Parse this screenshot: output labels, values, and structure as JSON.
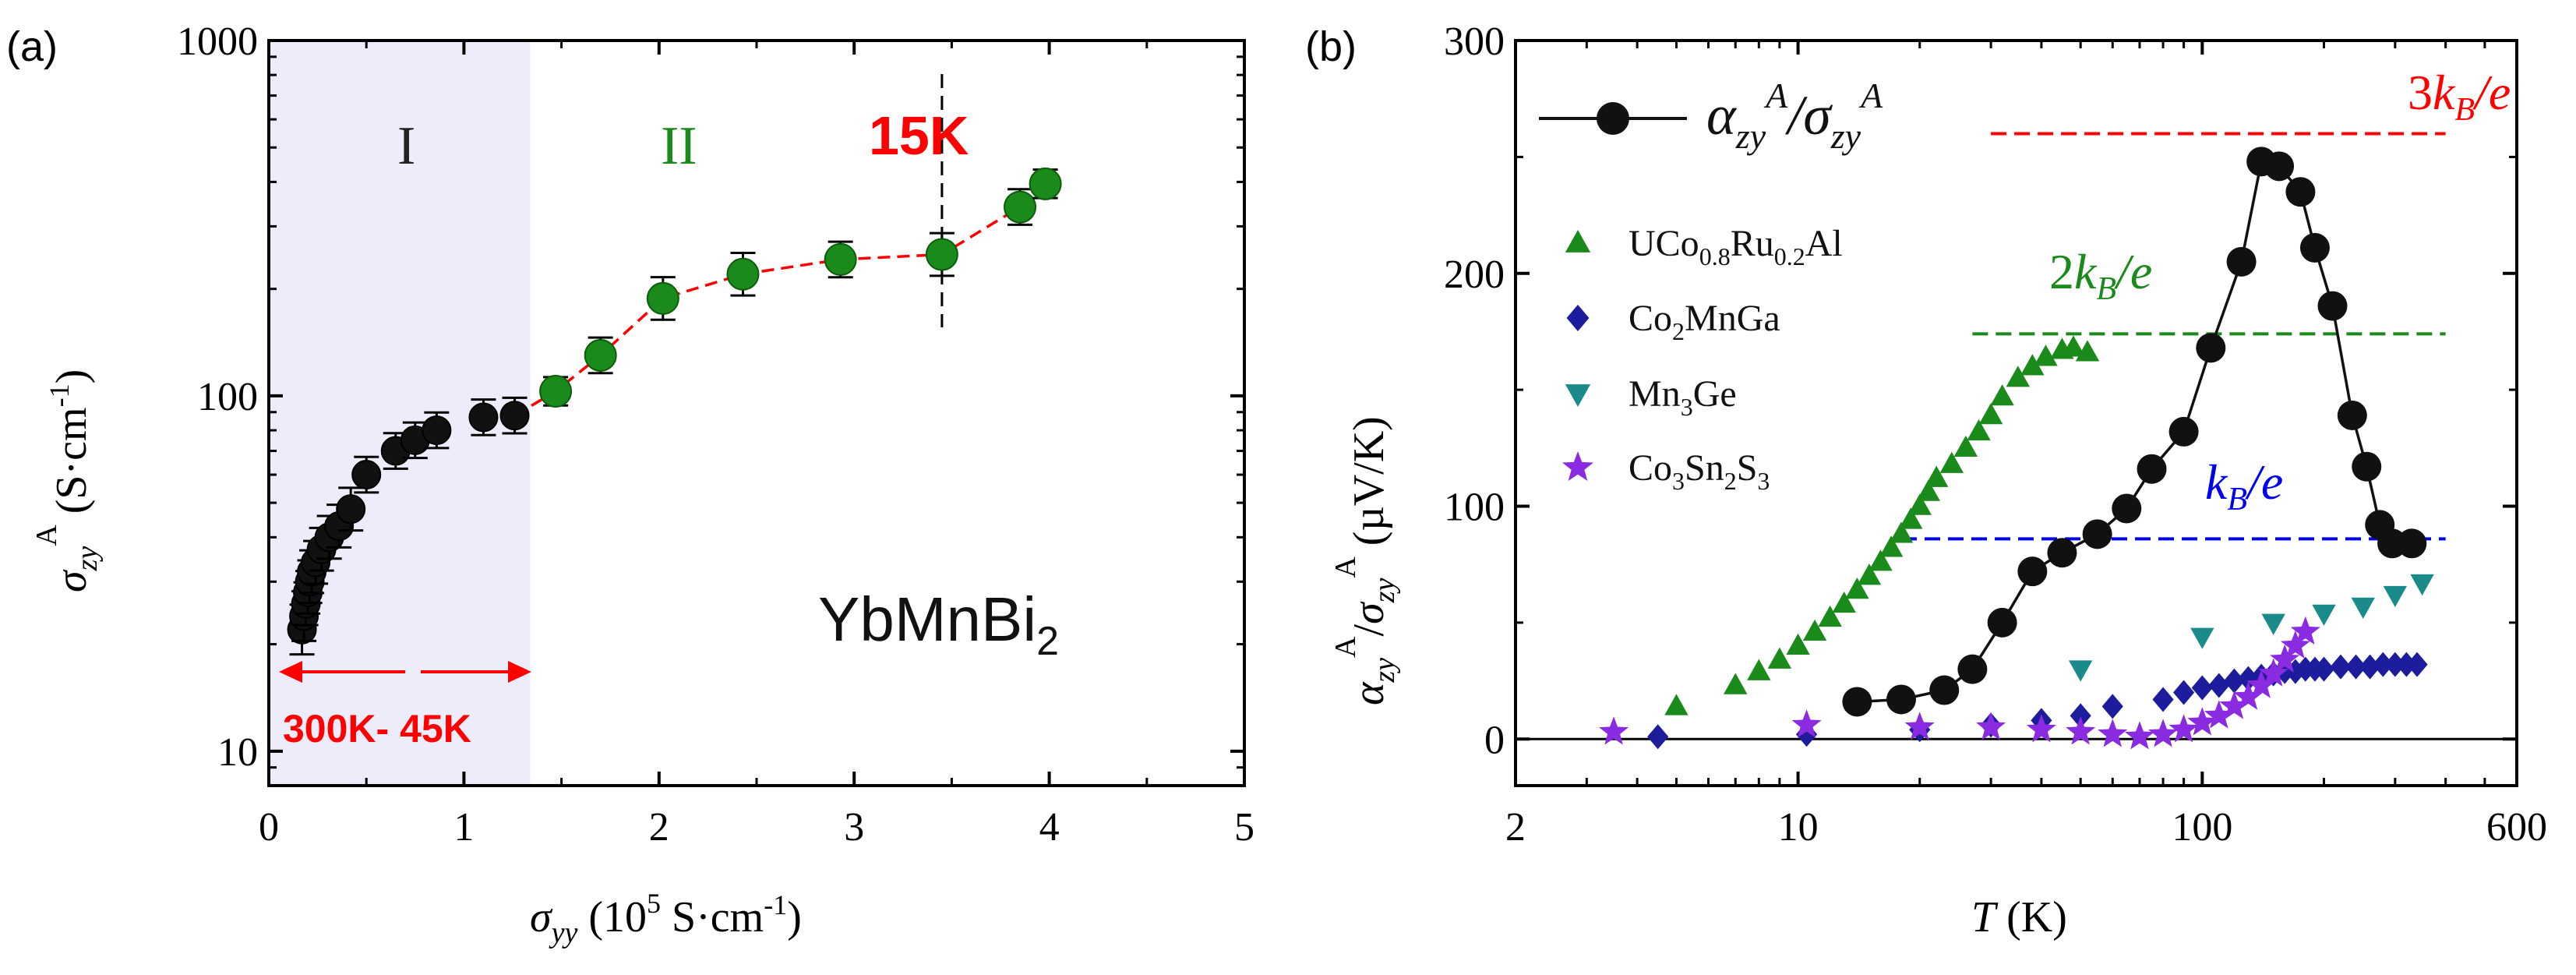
{
  "colors": {
    "axis": "#000000",
    "black_series": "#111111",
    "green": "#1a8a1a",
    "red": "#ff0000",
    "blue": "#0000ee",
    "navy": "#1c1c9c",
    "teal": "#1a8a8a",
    "purple": "#8a2be2",
    "shade": "#ececfa"
  },
  "chart_data": [
    {
      "panel": "a",
      "type": "scatter",
      "panel_label": "(a)",
      "x_axis": {
        "symbol": "σ",
        "sub": "yy",
        "label_rest": " (10",
        "label_sup": "5",
        "label_unit": " S·cm",
        "label_unit_sup": "-1",
        "label_close": ")",
        "range": [
          0,
          5
        ],
        "ticks": [
          0,
          1,
          2,
          3,
          4,
          5
        ],
        "tick_labels": [
          "0",
          "1",
          "2",
          "3",
          "4",
          "5"
        ]
      },
      "y_axis": {
        "symbol": "σ",
        "sub": "zy",
        "sup": "A",
        "unit": " (S·cm",
        "unit_sup": "-1",
        "unit_close": ")",
        "scale": "log",
        "range": [
          8,
          1000
        ],
        "ticks": [
          10,
          100,
          1000
        ],
        "tick_labels": [
          "10",
          "100",
          "1000"
        ]
      },
      "region_labels": {
        "region_I": "I",
        "region_II": "II",
        "region_I_x_range": [
          0,
          1.34
        ]
      },
      "annotations": {
        "temperature_range": "300K- 45K",
        "transition": "15K",
        "transition_x": 3.45,
        "material": "YbMnBi",
        "material_sub": "2"
      },
      "series": [
        {
          "name": "region I (black)",
          "color_key": "black_series",
          "x": [
            0.17,
            0.18,
            0.19,
            0.2,
            0.21,
            0.22,
            0.24,
            0.27,
            0.31,
            0.36,
            0.42,
            0.5,
            0.65,
            0.75,
            0.86,
            1.1,
            1.26
          ],
          "y": [
            22,
            24,
            26,
            28,
            30,
            32,
            34,
            37,
            40,
            43,
            48,
            60,
            70,
            75,
            80,
            87,
            88
          ],
          "error": [
            0.07,
            0.07,
            0.06,
            0.06,
            0.06,
            0.06,
            0.06,
            0.06,
            0.06,
            0.06,
            0.06,
            0.05,
            0.05,
            0.05,
            0.05,
            0.05,
            0.05
          ]
        },
        {
          "name": "region II (green)",
          "color_key": "green",
          "x": [
            1.47,
            1.7,
            2.02,
            2.43,
            2.93,
            3.45,
            3.85,
            3.98
          ],
          "y": [
            103,
            130,
            188,
            220,
            242,
            250,
            340,
            395
          ],
          "error": [
            0.04,
            0.05,
            0.06,
            0.06,
            0.05,
            0.06,
            0.05,
            0.04
          ]
        }
      ],
      "trend_line": {
        "color_key": "red",
        "style": "dashed",
        "x": [
          1.26,
          1.47,
          1.7,
          2.02,
          2.43,
          2.93,
          3.45,
          3.85,
          3.98
        ],
        "y": [
          88,
          103,
          130,
          188,
          220,
          242,
          250,
          340,
          395
        ]
      }
    },
    {
      "panel": "b",
      "type": "scatter",
      "panel_label": "(b)",
      "x_axis": {
        "symbol": "T",
        "unit": " (K)",
        "scale": "log",
        "range": [
          2,
          600
        ],
        "ticks": [
          2,
          10,
          100,
          600
        ],
        "tick_labels": [
          "2",
          "10",
          "100",
          "600"
        ]
      },
      "y_axis": {
        "label_alpha": "α",
        "label_sub": "zy",
        "label_sup": "A",
        "label_slash": "/",
        "label_sigma": "σ",
        "label_unit": " (µV/K)",
        "range": [
          -20,
          300
        ],
        "ticks": [
          0,
          100,
          200,
          300
        ],
        "tick_labels": [
          "0",
          "100",
          "200",
          "300"
        ]
      },
      "reference_lines": [
        {
          "name": "3kB/e",
          "coef": "3",
          "y": 260,
          "x_range": [
            30,
            400
          ],
          "color_key": "red"
        },
        {
          "name": "2kB/e",
          "coef": "2",
          "y": 174,
          "x_range": [
            27,
            400
          ],
          "color_key": "green"
        },
        {
          "name": "kB/e",
          "coef": "",
          "y": 86,
          "x_range": [
            18,
            400
          ],
          "color_key": "blue"
        }
      ],
      "reference_label_parts": {
        "k": "k",
        "sub": "B",
        "tail": "/e"
      },
      "main_legend": {
        "alpha": "α",
        "sub": "zy",
        "sup": "A",
        "slash": "/",
        "sigma": "σ"
      },
      "series": [
        {
          "name": "UCo0.8Ru0.2Al",
          "legend_parts": {
            "a": "UCo",
            "b": "0.8",
            "c": "Ru",
            "d": "0.2",
            "e": "Al"
          },
          "marker": "triangle-up",
          "color_key": "green",
          "x": [
            5,
            7,
            8,
            9,
            10,
            11,
            12,
            13,
            14,
            15,
            16,
            17,
            18,
            19,
            20,
            21,
            22,
            24,
            26,
            28,
            30,
            32,
            35,
            38,
            41,
            45,
            48,
            52
          ],
          "y": [
            14,
            23,
            29,
            34,
            40,
            46,
            52,
            58,
            64,
            70,
            76,
            82,
            88,
            94,
            100,
            106,
            112,
            118,
            125,
            132,
            139,
            147,
            155,
            160,
            164,
            167,
            168,
            166
          ]
        },
        {
          "name": "Co2MnGa",
          "legend_parts": {
            "a": "Co",
            "b": "2",
            "c": "MnGa",
            "d": "",
            "e": ""
          },
          "marker": "diamond",
          "color_key": "navy",
          "x": [
            4.5,
            10.5,
            20,
            30,
            40,
            50,
            60,
            80,
            90,
            100,
            110,
            120,
            130,
            140,
            150,
            160,
            170,
            180,
            190,
            200,
            220,
            240,
            260,
            280,
            300,
            320,
            340
          ],
          "y": [
            1,
            2,
            4,
            6,
            8,
            10,
            14,
            17,
            20,
            22,
            23,
            25,
            26,
            27,
            28,
            29,
            29,
            30,
            30,
            30,
            31,
            31,
            31,
            32,
            32,
            32,
            32
          ]
        },
        {
          "name": "Mn3Ge",
          "legend_parts": {
            "a": "Mn",
            "b": "3",
            "c": "Ge",
            "d": "",
            "e": ""
          },
          "marker": "triangle-down",
          "color_key": "teal",
          "x": [
            50,
            100,
            150,
            200,
            250,
            300,
            350
          ],
          "y": [
            30,
            44,
            50,
            54,
            57,
            62,
            67
          ]
        },
        {
          "name": "Co3Sn2S3",
          "legend_parts": {
            "a": "Co",
            "b": "3",
            "c": "Sn",
            "d": "2",
            "e": "S",
            "f": "3"
          },
          "marker": "star",
          "color_key": "purple",
          "x": [
            3.5,
            10.5,
            20,
            30,
            40,
            50,
            60,
            70,
            80,
            90,
            100,
            110,
            120,
            130,
            140,
            150,
            160,
            170,
            180
          ],
          "y": [
            3,
            6,
            5,
            5,
            4,
            3,
            2,
            1,
            2,
            4,
            7,
            10,
            14,
            18,
            23,
            28,
            34,
            40,
            46
          ]
        },
        {
          "name": "αzyA/σzyA",
          "marker": "circle",
          "color_key": "black_series",
          "x": [
            14,
            18,
            23,
            27,
            32,
            38,
            45,
            55,
            65,
            75,
            90,
            105,
            125,
            140,
            155,
            175,
            190,
            210,
            235,
            255,
            275,
            295,
            330
          ],
          "y": [
            16,
            17,
            21,
            30,
            50,
            72,
            80,
            88,
            99,
            116,
            132,
            168,
            205,
            248,
            246,
            235,
            211,
            186,
            139,
            117,
            92,
            84,
            84
          ]
        }
      ]
    }
  ]
}
